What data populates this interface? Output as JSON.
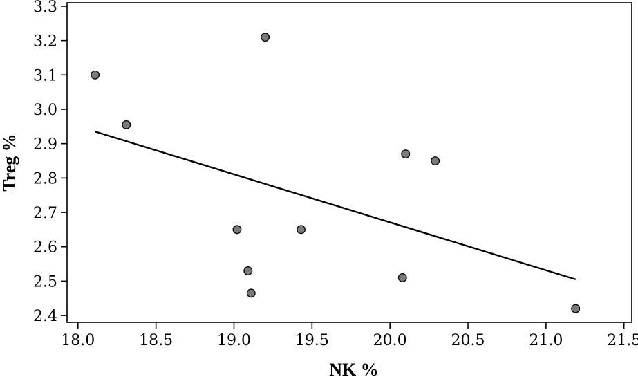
{
  "chart_data": {
    "type": "scatter",
    "xlabel": "NK %",
    "ylabel": "Treg %",
    "xlim": [
      17.93,
      21.55
    ],
    "ylim": [
      2.38,
      3.31
    ],
    "xticks": [
      18.0,
      18.5,
      19.0,
      19.5,
      20.0,
      20.5,
      21.0,
      21.5
    ],
    "xtick_labels": [
      "18.0",
      "18.5",
      "19.0",
      "19.5",
      "20.0",
      "20.5",
      "21.0",
      "21.5"
    ],
    "yticks": [
      2.4,
      2.5,
      2.6,
      2.7,
      2.8,
      2.9,
      3.0,
      3.1,
      3.2,
      3.3
    ],
    "ytick_labels": [
      "2.4",
      "2.5",
      "2.6",
      "2.7",
      "2.8",
      "2.9",
      "3.0",
      "3.1",
      "3.2",
      "3.3"
    ],
    "points": [
      {
        "x": 18.11,
        "y": 3.1
      },
      {
        "x": 18.31,
        "y": 2.955
      },
      {
        "x": 19.2,
        "y": 3.21
      },
      {
        "x": 19.02,
        "y": 2.65
      },
      {
        "x": 19.43,
        "y": 2.65
      },
      {
        "x": 19.09,
        "y": 2.53
      },
      {
        "x": 19.11,
        "y": 2.465
      },
      {
        "x": 20.1,
        "y": 2.87
      },
      {
        "x": 20.29,
        "y": 2.85
      },
      {
        "x": 20.08,
        "y": 2.51
      },
      {
        "x": 21.19,
        "y": 2.42
      }
    ],
    "trendline": {
      "x": [
        18.11,
        21.19
      ],
      "y": [
        2.935,
        2.505
      ]
    },
    "grid": false,
    "legend": "none",
    "colors": {
      "point_fill": "#7a7a7a",
      "point_stroke": "#000000",
      "line": "#000000"
    }
  }
}
